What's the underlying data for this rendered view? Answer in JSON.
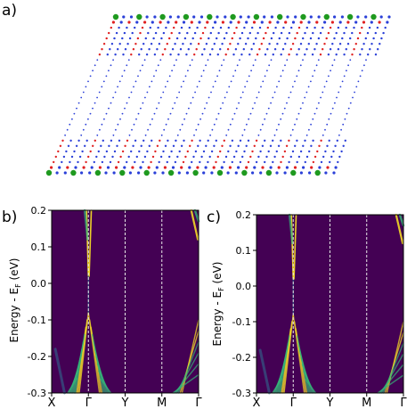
{
  "figure": {
    "panel_labels": {
      "a": "a)",
      "b": "b)",
      "c": "c)"
    }
  },
  "structure_panel": {
    "atom_colors": {
      "gold": "#1f9a1f",
      "selenium": "#e02020",
      "bismuth": "#2a3fd8",
      "other": "#2a3fd8"
    }
  },
  "chart_data": [
    {
      "type": "heatmap",
      "panel": "b",
      "title": "",
      "ylabel_text": "Energy - E",
      "ylabel_subscript": "F",
      "ylabel_unit": " (eV)",
      "ylim": [
        -0.3,
        0.2
      ],
      "yticks": [
        "0.2",
        "0.1",
        "0.0",
        "-0.1",
        "-0.2",
        "-0.3"
      ],
      "k_labels": [
        "X",
        "Γ",
        "Y",
        "M",
        "Γ"
      ],
      "k_positions": [
        0,
        1,
        2.0,
        3.0,
        4.0
      ],
      "colormap": [
        "#440154",
        "#31688e",
        "#35b779",
        "#fde725"
      ],
      "background": "#440154",
      "vertical_lines": [
        "Γ",
        "Y",
        "M"
      ]
    },
    {
      "type": "heatmap",
      "panel": "c",
      "title": "",
      "ylabel_text": "Energy - E",
      "ylabel_subscript": "F",
      "ylabel_unit": " (eV)",
      "ylim": [
        -0.3,
        0.2
      ],
      "yticks": [
        "0.2",
        "0.1",
        "0.0",
        "-0.1",
        "-0.2",
        "-0.3"
      ],
      "k_labels": [
        "X",
        "Γ",
        "Y",
        "M",
        "Γ"
      ],
      "k_positions": [
        0,
        1,
        2.0,
        3.0,
        4.0
      ],
      "colormap": [
        "#440154",
        "#31688e",
        "#35b779",
        "#fde725"
      ],
      "background": "#440154",
      "vertical_lines": [
        "Γ",
        "Y",
        "M"
      ]
    }
  ]
}
